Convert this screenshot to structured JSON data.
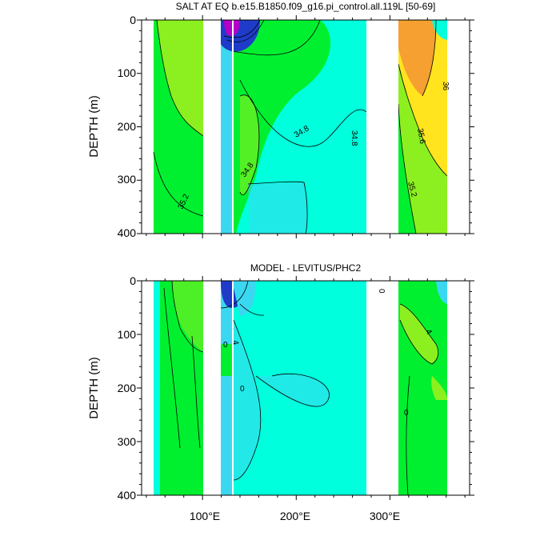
{
  "panels": [
    {
      "title": "SALT AT EQ b.e15.B1850.f09_g16.pi_control.all.119L [50-69]",
      "ylabel": "DEPTH (m)",
      "contour_labels": [
        "35.2",
        "34.8",
        "34.8",
        "34.8",
        "36",
        "35.6",
        "35.2"
      ]
    },
    {
      "title": "MODEL - LEVITUS/PHC2",
      "ylabel": "DEPTH (m)",
      "contour_labels": [
        "0",
        "0",
        "0",
        "4",
        "4",
        "0"
      ]
    }
  ],
  "xaxis": {
    "ticks": [
      100,
      200,
      300
    ],
    "tick_labels": [
      "100°E",
      "200°E",
      "300°E"
    ],
    "range": [
      35,
      385
    ]
  },
  "yaxis": {
    "ticks": [
      0,
      100,
      200,
      300,
      400
    ],
    "tick_labels": [
      "0",
      "100",
      "200",
      "300",
      "400"
    ],
    "range": [
      0,
      400
    ],
    "reversed": true
  },
  "colors": {
    "land": "#ffffff",
    "salt_fresh": "#1e3cc8",
    "salt_low": "#3ad8f0",
    "salt_mid": "#00ffdc",
    "salt_green": "#00f030",
    "salt_lime": "#8cf020",
    "salt_yellow": "#ffe41e",
    "salt_orange": "#f5a030",
    "diff_neg": "#00ffdc",
    "diff_zero": "#00f030",
    "diff_pos": "#8cf020"
  },
  "chart_data": [
    {
      "type": "heatmap",
      "title": "SALT AT EQ b.e15.B1850.f09_g16.pi_control.all.119L [50-69]",
      "xlabel": "",
      "ylabel": "DEPTH (m)",
      "xlim": [
        35,
        385
      ],
      "ylim": [
        400,
        0
      ],
      "x_tick_labels": [
        "100°E",
        "200°E",
        "300°E"
      ],
      "y_tick_labels": [
        "0",
        "100",
        "200",
        "300",
        "400"
      ],
      "contour_labels": [
        35.2,
        34.8,
        34.8,
        34.8,
        36,
        35.6,
        35.2
      ],
      "land_gaps_lon": [
        [
          98,
          118
        ],
        [
          280,
          313
        ]
      ]
    },
    {
      "type": "heatmap",
      "title": "MODEL - LEVITUS/PHC2",
      "xlabel": "",
      "ylabel": "DEPTH (m)",
      "xlim": [
        35,
        385
      ],
      "ylim": [
        400,
        0
      ],
      "x_tick_labels": [
        "100°E",
        "200°E",
        "300°E"
      ],
      "y_tick_labels": [
        "0",
        "100",
        "200",
        "300",
        "400"
      ],
      "contour_labels": [
        0,
        0,
        0,
        4,
        4,
        0
      ],
      "land_gaps_lon": [
        [
          98,
          118
        ],
        [
          280,
          313
        ]
      ]
    }
  ]
}
